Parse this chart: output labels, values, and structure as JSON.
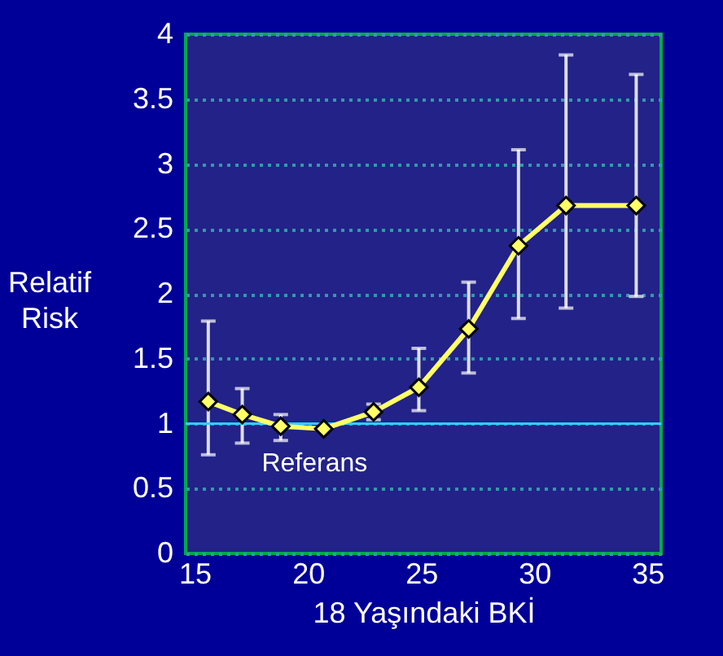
{
  "chart_data": {
    "type": "line",
    "xlabel": "18 Yaşındaki BKİ",
    "ylabel": "Relatif Risk",
    "x": [
      15.6,
      17.1,
      18.8,
      20.7,
      22.9,
      24.9,
      27.1,
      29.3,
      31.4,
      34.5
    ],
    "series": [
      {
        "color": "#ffff66",
        "values": [
          1.17,
          1.07,
          0.98,
          0.96,
          1.09,
          1.28,
          1.73,
          2.37,
          2.68,
          2.68
        ],
        "errors": [
          [
            0.76,
            1.79
          ],
          [
            0.85,
            1.27
          ],
          [
            0.87,
            1.07
          ],
          null,
          [
            1.03,
            1.15
          ],
          [
            1.1,
            1.58
          ],
          [
            1.39,
            2.09
          ],
          [
            1.81,
            3.11
          ],
          [
            1.89,
            3.84
          ],
          [
            1.98,
            3.69
          ]
        ]
      }
    ],
    "xlim": [
      14.6,
      35.6
    ],
    "xticks": [
      15,
      20,
      25,
      30,
      35
    ],
    "ylim": [
      0,
      4
    ],
    "yticks": [
      0,
      0.5,
      1,
      1.5,
      2,
      2.5,
      3,
      3.5,
      4
    ],
    "grid": "y",
    "marker": "diamond",
    "line_style": "solid",
    "ref_lines": [
      {
        "axis": "y",
        "value": 1,
        "label": "Referans",
        "color": "#33ccff"
      }
    ]
  }
}
